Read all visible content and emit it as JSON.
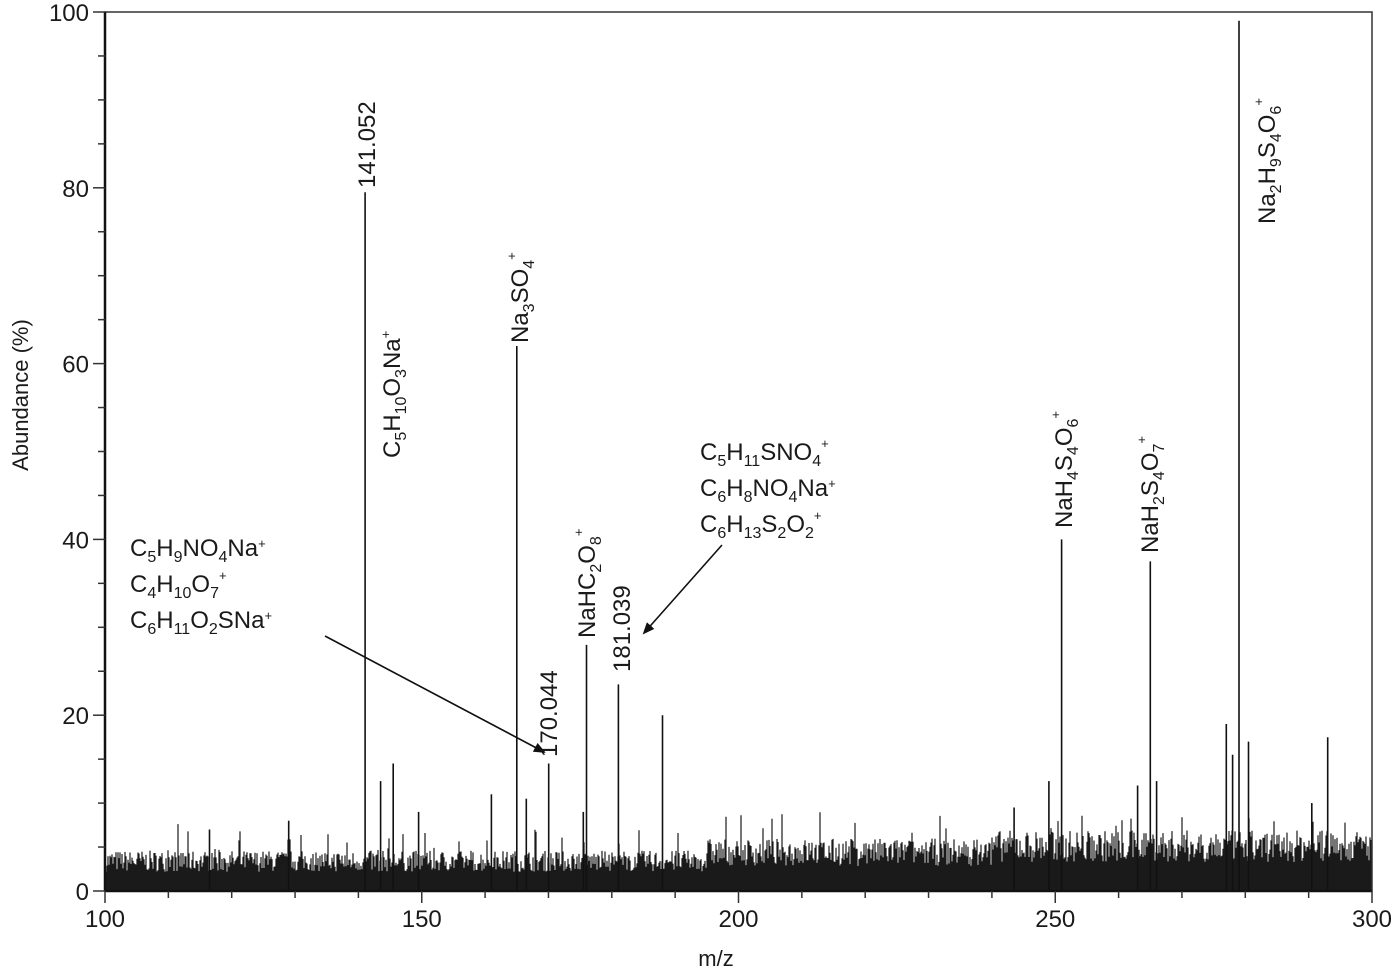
{
  "chart_data": {
    "type": "bar",
    "subtype": "mass-spectrum",
    "title": "",
    "xlabel": "m/z",
    "ylabel": "Abundance (%)",
    "xlim": [
      100,
      300
    ],
    "ylim": [
      0,
      100
    ],
    "x_ticks": [
      100,
      150,
      200,
      250,
      300
    ],
    "x_minor_step": 10,
    "y_ticks": [
      0,
      20,
      40,
      60,
      80,
      100
    ],
    "y_minor_step": 5,
    "grid": false,
    "legend": null,
    "noise_level": 4,
    "peaks": [
      {
        "mz": 116.5,
        "abundance": 7
      },
      {
        "mz": 129,
        "abundance": 8
      },
      {
        "mz": 141.052,
        "abundance": 79.5
      },
      {
        "mz": 143.5,
        "abundance": 12.5
      },
      {
        "mz": 145.5,
        "abundance": 14.5
      },
      {
        "mz": 149.5,
        "abundance": 9
      },
      {
        "mz": 161,
        "abundance": 11
      },
      {
        "mz": 165,
        "abundance": 62
      },
      {
        "mz": 166.5,
        "abundance": 10.5
      },
      {
        "mz": 170.044,
        "abundance": 14.5
      },
      {
        "mz": 175.5,
        "abundance": 9
      },
      {
        "mz": 176,
        "abundance": 28
      },
      {
        "mz": 181.039,
        "abundance": 23.5
      },
      {
        "mz": 188,
        "abundance": 20
      },
      {
        "mz": 243.5,
        "abundance": 9.5
      },
      {
        "mz": 249,
        "abundance": 12.5
      },
      {
        "mz": 251,
        "abundance": 40
      },
      {
        "mz": 263,
        "abundance": 12
      },
      {
        "mz": 265,
        "abundance": 37.5
      },
      {
        "mz": 266,
        "abundance": 12.5
      },
      {
        "mz": 277,
        "abundance": 19
      },
      {
        "mz": 278,
        "abundance": 15.5
      },
      {
        "mz": 279,
        "abundance": 99
      },
      {
        "mz": 280.5,
        "abundance": 17
      },
      {
        "mz": 290.5,
        "abundance": 10
      },
      {
        "mz": 293,
        "abundance": 17.5
      }
    ],
    "annotations": [
      {
        "text": "141.052",
        "mz": 141.052,
        "rotated": true
      },
      {
        "text": "C5H10O3Na+",
        "mz": 141.052,
        "rotated": true
      },
      {
        "text": "Na3SO4+",
        "mz": 165,
        "rotated": true
      },
      {
        "text": "170.044",
        "mz": 170.044,
        "rotated": true
      },
      {
        "text": "NaHC2O8+",
        "mz": 176,
        "rotated": true
      },
      {
        "text": "181.039",
        "mz": 181.039,
        "rotated": true
      },
      {
        "text": "NaH4S4O6+",
        "mz": 251,
        "rotated": true
      },
      {
        "text": "NaH2S4O7+",
        "mz": 265,
        "rotated": true
      },
      {
        "text": "Na2H9S4O6+",
        "mz": 279,
        "rotated": true
      },
      {
        "text": [
          "C5H9NO4Na+",
          "C4H10O7+",
          "C6H11O2SNa+"
        ],
        "arrow_to_mz": 170.044
      },
      {
        "text": [
          "C5H11SNO4+",
          "C6H8NO4Na+",
          "C6H13S2O2+"
        ],
        "arrow_to_mz": 181.039
      }
    ]
  },
  "labels": {
    "xlabel": "m/z",
    "ylabel": "Abundance (%)",
    "x_ticks": [
      "100",
      "150",
      "200",
      "250",
      "300"
    ],
    "y_ticks": [
      "0",
      "20",
      "40",
      "60",
      "80",
      "100"
    ],
    "peak_141": "141.052",
    "peak_170": "170.044",
    "peak_181": "181.039"
  }
}
